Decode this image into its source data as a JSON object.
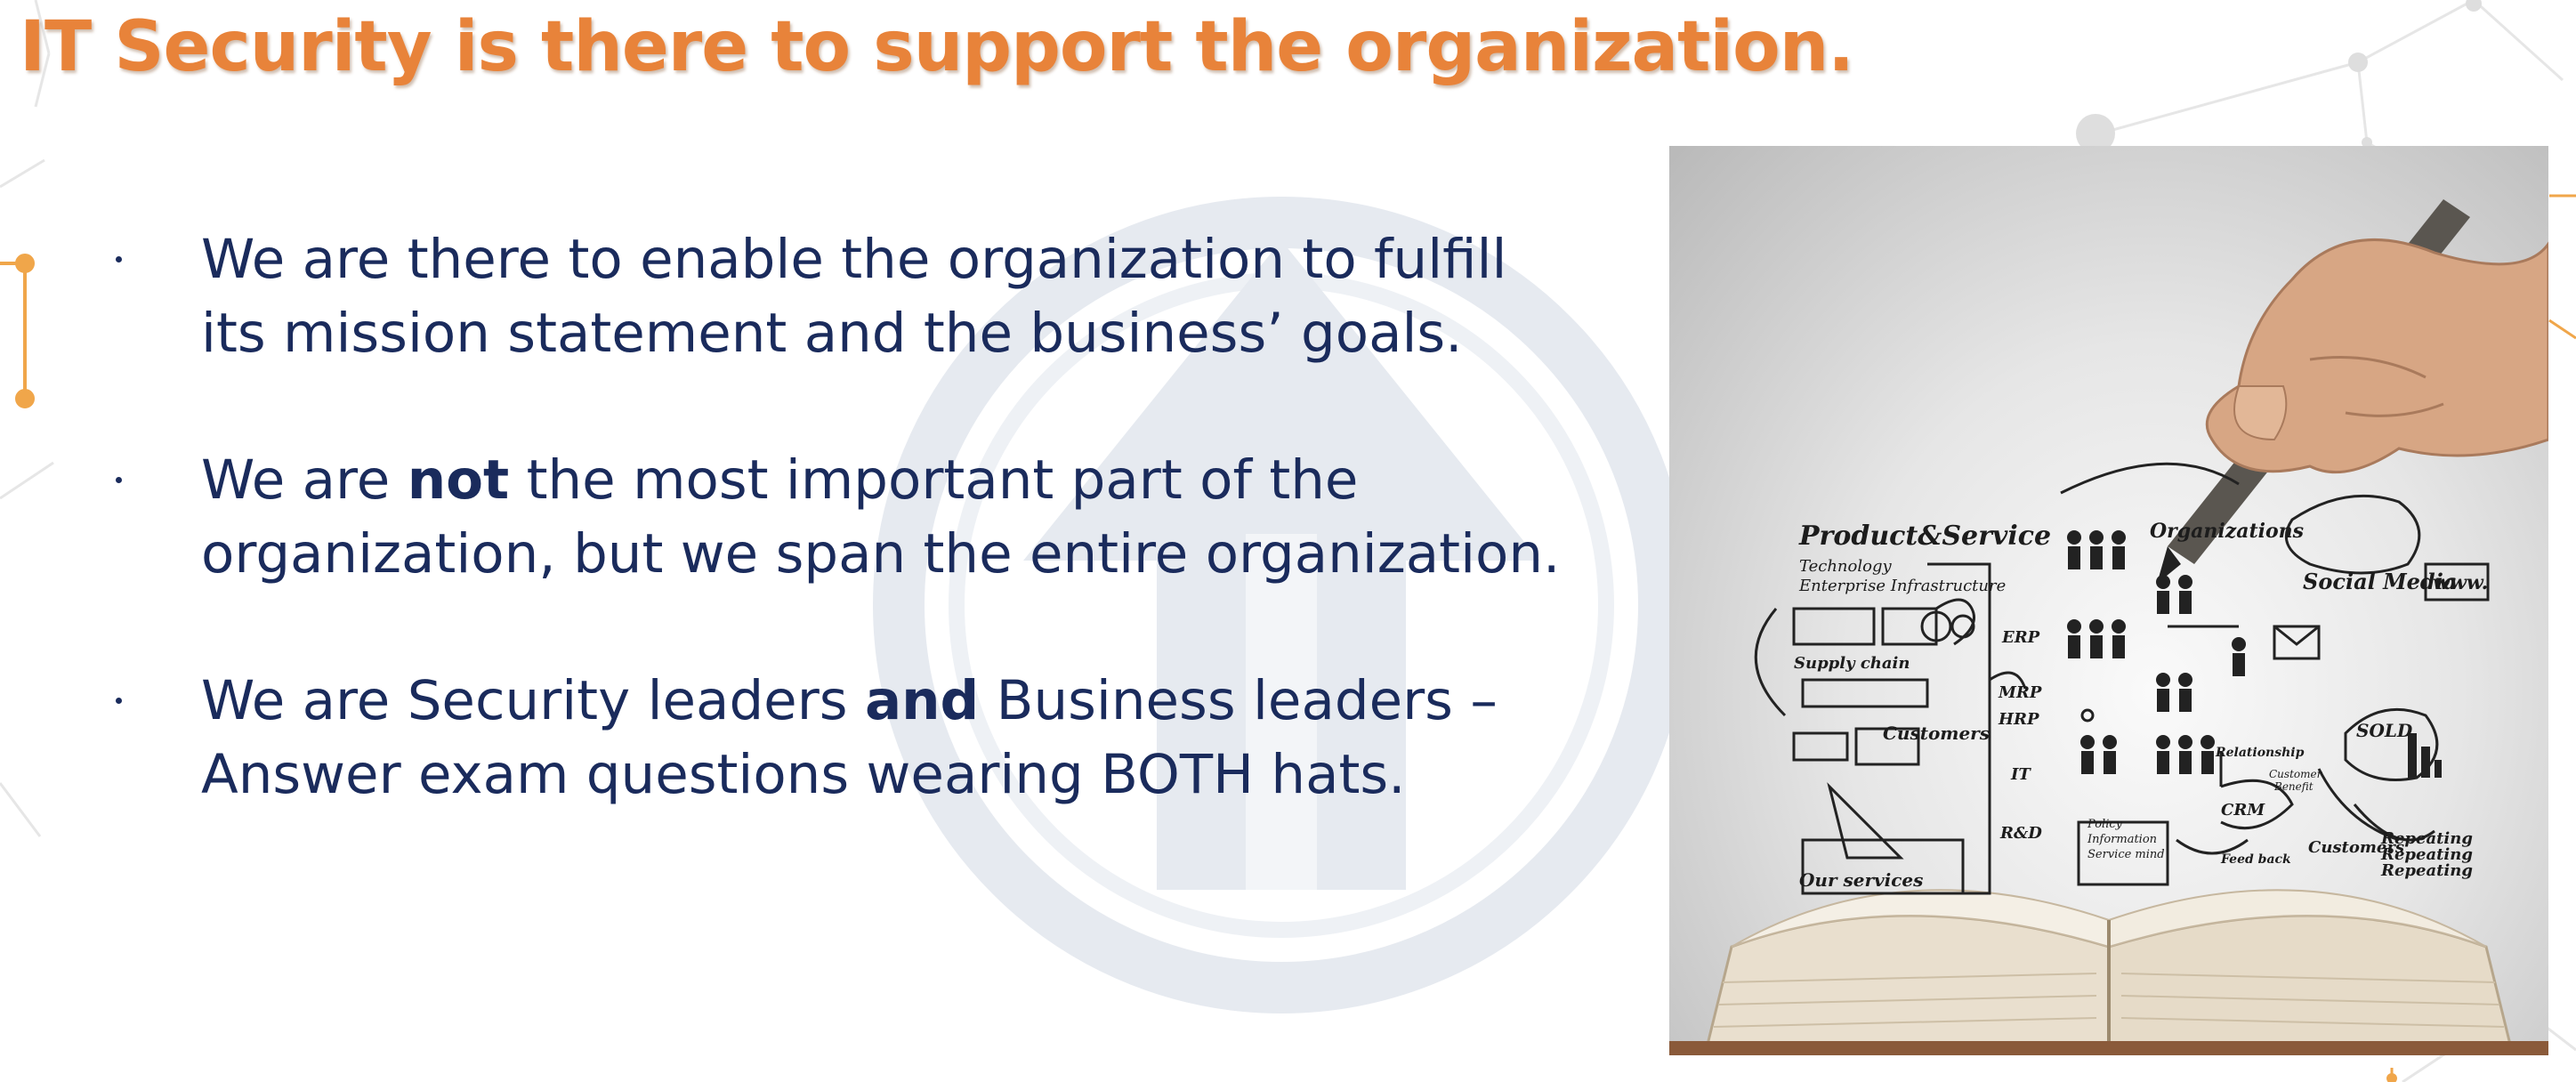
{
  "slide": {
    "title": "IT Security is there to support the organization.",
    "bullets": [
      {
        "line1": "We are there to enable the organization to fulfill",
        "line2": "its mission statement and the business’ goals."
      },
      {
        "line1_pre": "We are ",
        "line1_bold": "not",
        "line1_post": " the most important part of the",
        "line2": "organization, but we span the entire organization."
      },
      {
        "line1_pre": "We are Security leaders ",
        "line1_bold": "and",
        "line1_post": " Business leaders –",
        "line2": "Answer exam questions wearing BOTH hats."
      }
    ]
  },
  "illustration": {
    "labels": {
      "product_service": "Product&Service",
      "technology": "Technology",
      "enterprise_infrastructure": "Enterprise Infrastructure",
      "supply_chain": "Supply chain",
      "customers_left": "Customers",
      "our_services": "Our services",
      "organizations": "Organizations",
      "social_media": "Social Media",
      "www": "www.",
      "erp": "ERP",
      "mrp": "MRP",
      "hrp": "HRP",
      "it": "IT",
      "rd": "R&D",
      "policy": "Policy",
      "information": "Information",
      "service_mind": "Service mind",
      "relationship": "Relationship",
      "customer_benefit_1": "Customer",
      "customer_benefit_2": "Benefit",
      "crm": "CRM",
      "feed_back": "Feed back",
      "customers_right": "Customers",
      "sold": "SOLD",
      "repeating_1": "Repeating",
      "repeating_2": "Repeating",
      "repeating_3": "Repeating"
    }
  },
  "colors": {
    "title": "#e8833a",
    "body_text": "#1a2b5c",
    "network_lines": "#e4e4e4",
    "network_nodes_orange": "#f0a64a",
    "watermark": "#e6eaf0"
  }
}
